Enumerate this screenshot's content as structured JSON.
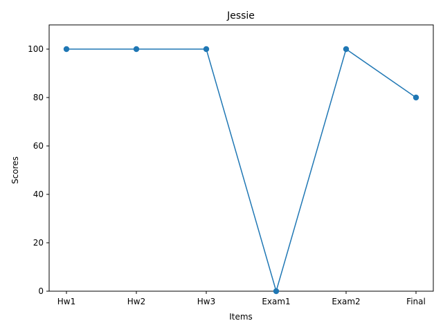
{
  "chart_data": {
    "type": "line",
    "title": "Jessie",
    "xlabel": "Items",
    "ylabel": "Scores",
    "categories": [
      "Hw1",
      "Hw2",
      "Hw3",
      "Exam1",
      "Exam2",
      "Final"
    ],
    "series": [
      {
        "values": [
          100,
          100,
          100,
          0,
          100,
          80
        ]
      }
    ],
    "ylim": [
      0,
      110
    ],
    "yticks": [
      0,
      20,
      40,
      60,
      80,
      100
    ],
    "grid": false,
    "color": "#1f77b4",
    "marker": "circle"
  }
}
